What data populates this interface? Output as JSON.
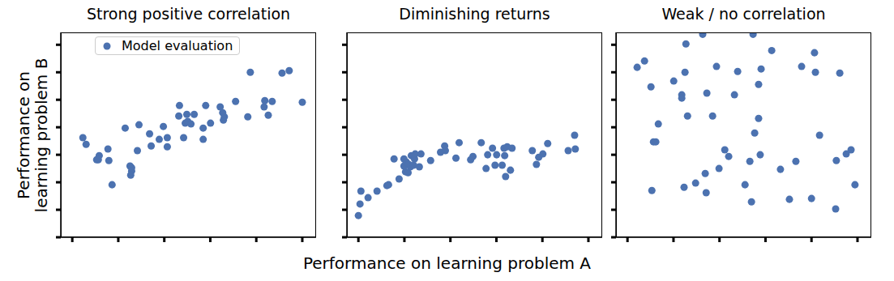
{
  "chart_data": [
    {
      "type": "scatter",
      "title": "Strong positive correlation",
      "y_label": "Performance on\nlearning problem B",
      "legend": "upper left",
      "tick_labels": false,
      "xlim": [
        -0.05,
        1.06
      ],
      "xticks": [
        0,
        0.2,
        0.4,
        0.6,
        0.8,
        1
      ],
      "ylim": [
        0,
        7.45
      ],
      "yticks": [
        0,
        1,
        2,
        3,
        4,
        5,
        6,
        7
      ],
      "series": [
        {
          "name": "Model evaluation",
          "color": "#4c72b0",
          "marker": "circle",
          "x": [
            0.046,
            0.06,
            0.106,
            0.117,
            0.113,
            0.155,
            0.159,
            0.173,
            0.23,
            0.251,
            0.258,
            0.258,
            0.254,
            0.283,
            0.29,
            0.336,
            0.343,
            0.378,
            0.396,
            0.413,
            0.413,
            0.463,
            0.466,
            0.484,
            0.491,
            0.498,
            0.502,
            0.516,
            0.53,
            0.569,
            0.569,
            0.58,
            0.601,
            0.643,
            0.654,
            0.657,
            0.661,
            0.71,
            0.763,
            0.774,
            0.834,
            0.837,
            0.852,
            0.869,
            0.912,
            0.943,
            1.0
          ],
          "values": [
            3.62,
            3.38,
            2.82,
            2.97,
            2.82,
            3.21,
            2.79,
            1.91,
            3.97,
            2.59,
            2.53,
            2.41,
            2.26,
            3.15,
            4.09,
            3.76,
            3.32,
            3.56,
            4.03,
            3.29,
            3.62,
            4.41,
            4.79,
            3.62,
            4.15,
            4.47,
            4.21,
            4.12,
            4.47,
            3.97,
            3.56,
            4.79,
            4.15,
            4.74,
            4.53,
            4.26,
            4.38,
            4.94,
            4.38,
            6.0,
            4.74,
            4.97,
            4.44,
            4.94,
            5.97,
            6.06,
            4.91
          ]
        }
      ]
    },
    {
      "type": "scatter",
      "title": "Diminishing returns",
      "x_label": "Performance on learning problem A",
      "tick_labels": false,
      "xlim": [
        -0.05,
        1.06
      ],
      "xticks": [
        0,
        0.2,
        0.4,
        0.6,
        0.8,
        1
      ],
      "ylim": [
        0,
        7.45
      ],
      "yticks": [
        0,
        1,
        2,
        3,
        4,
        5,
        6,
        7
      ],
      "series": [
        {
          "color": "#4c72b0",
          "marker": "circle",
          "x": [
            0,
            0.007,
            0.011,
            0.042,
            0.081,
            0.124,
            0.131,
            0.155,
            0.177,
            0.198,
            0.198,
            0.205,
            0.208,
            0.216,
            0.219,
            0.226,
            0.23,
            0.24,
            0.244,
            0.247,
            0.265,
            0.272,
            0.314,
            0.357,
            0.375,
            0.378,
            0.424,
            0.438,
            0.488,
            0.498,
            0.534,
            0.555,
            0.562,
            0.583,
            0.594,
            0.601,
            0.625,
            0.633,
            0.636,
            0.64,
            0.647,
            0.661,
            0.668,
            0.756,
            0.774,
            0.784,
            0.802,
            0.823,
            0.912,
            0.94,
            0.943
          ],
          "values": [
            0.79,
            1.21,
            1.68,
            1.44,
            1.68,
            1.88,
            1.91,
            2.85,
            2.12,
            2.85,
            2.59,
            2.38,
            2.74,
            2.35,
            2.65,
            2.56,
            2.97,
            2.62,
            2.85,
            3.03,
            2.56,
            3.03,
            2.79,
            3.09,
            3.32,
            3.15,
            2.88,
            3.44,
            2.82,
            2.94,
            3.44,
            2.5,
            3.0,
            3.24,
            2.62,
            3.0,
            2.62,
            3.24,
            2.97,
            2.21,
            3.29,
            2.44,
            3.24,
            3.15,
            2.65,
            2.91,
            3.03,
            3.41,
            3.15,
            3.71,
            3.21
          ]
        }
      ]
    },
    {
      "type": "scatter",
      "title": "Weak / no correlation",
      "tick_labels": false,
      "xlim": [
        -0.05,
        1.06
      ],
      "xticks": [
        0,
        0.2,
        0.4,
        0.6,
        0.8,
        1
      ],
      "ylim": [
        0,
        7.45
      ],
      "yticks": [
        0,
        1,
        2,
        3,
        4,
        5,
        6,
        7
      ],
      "series": [
        {
          "color": "#4c72b0",
          "marker": "circle",
          "x": [
            0.042,
            0.074,
            0.102,
            0.106,
            0.113,
            0.123,
            0.134,
            0.201,
            0.236,
            0.236,
            0.246,
            0.25,
            0.254,
            0.261,
            0.296,
            0.327,
            0.338,
            0.342,
            0.345,
            0.37,
            0.387,
            0.398,
            0.423,
            0.44,
            0.465,
            0.479,
            0.511,
            0.532,
            0.539,
            0.546,
            0.553,
            0.57,
            0.57,
            0.577,
            0.581,
            0.627,
            0.665,
            0.704,
            0.732,
            0.757,
            0.8,
            0.813,
            0.817,
            0.835,
            0.905,
            0.908,
            0.923,
            0.951,
            0.972,
            0.989
          ],
          "values": [
            6.18,
            6.41,
            5.47,
            1.7,
            3.47,
            3.47,
            4.12,
            5.68,
            5.18,
            5.06,
            1.82,
            6.0,
            7.03,
            4.41,
            1.97,
            7.38,
            2.32,
            1.62,
            5.24,
            4.41,
            6.21,
            2.5,
            3.18,
            2.94,
            5.18,
            6.03,
            1.91,
            2.76,
            1.29,
            7.38,
            3.79,
            5.56,
            4.32,
            3.0,
            6.12,
            6.79,
            2.47,
            1.38,
            2.76,
            6.21,
            1.41,
            6.71,
            6.0,
            3.71,
            1.03,
            2.79,
            5.97,
            3.03,
            3.18,
            1.91
          ]
        }
      ]
    }
  ]
}
